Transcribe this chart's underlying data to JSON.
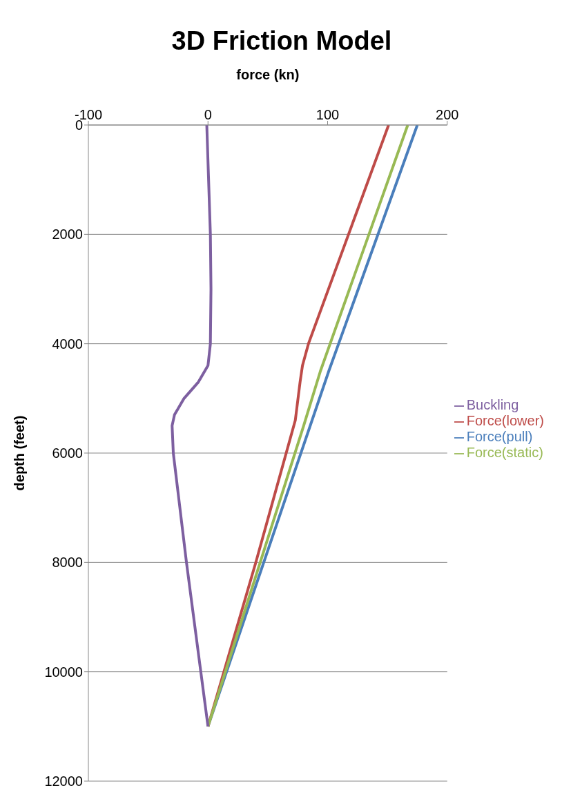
{
  "chart_data": {
    "type": "line",
    "title": "3D Friction Model",
    "xlabel": "force (kn)",
    "ylabel": "depth (feet)",
    "xlim": [
      -100,
      200
    ],
    "xticks": [
      -100,
      0,
      100,
      200
    ],
    "ylim": [
      12000,
      0
    ],
    "yticks": [
      0,
      2000,
      4000,
      6000,
      8000,
      10000,
      12000
    ],
    "grid": "y",
    "legend": "right",
    "marker": "none",
    "line_style": "solid",
    "series": [
      {
        "name": "Force(pull)",
        "color": "#4a7ebb",
        "x": [
          175,
          101,
          0
        ],
        "values": [
          0,
          4500,
          11000
        ]
      },
      {
        "name": "Force(lower)",
        "color": "#be4b48",
        "x": [
          151,
          84,
          79,
          77,
          73,
          40,
          0
        ],
        "values": [
          0,
          4000,
          4400,
          4700,
          5400,
          8000,
          11000
        ]
      },
      {
        "name": "Force(static)",
        "color": "#98b954",
        "x": [
          167,
          94,
          80,
          0
        ],
        "values": [
          0,
          4500,
          5500,
          11000
        ]
      },
      {
        "name": "Buckling",
        "color": "#7d5fa0",
        "x": [
          -1,
          2,
          2.5,
          2,
          0,
          -8,
          -20,
          -28,
          -30,
          -29,
          -18,
          -6,
          0
        ],
        "values": [
          0,
          2000,
          3000,
          4000,
          4400,
          4700,
          5000,
          5300,
          5500,
          6000,
          8000,
          10000,
          11000
        ]
      }
    ]
  }
}
